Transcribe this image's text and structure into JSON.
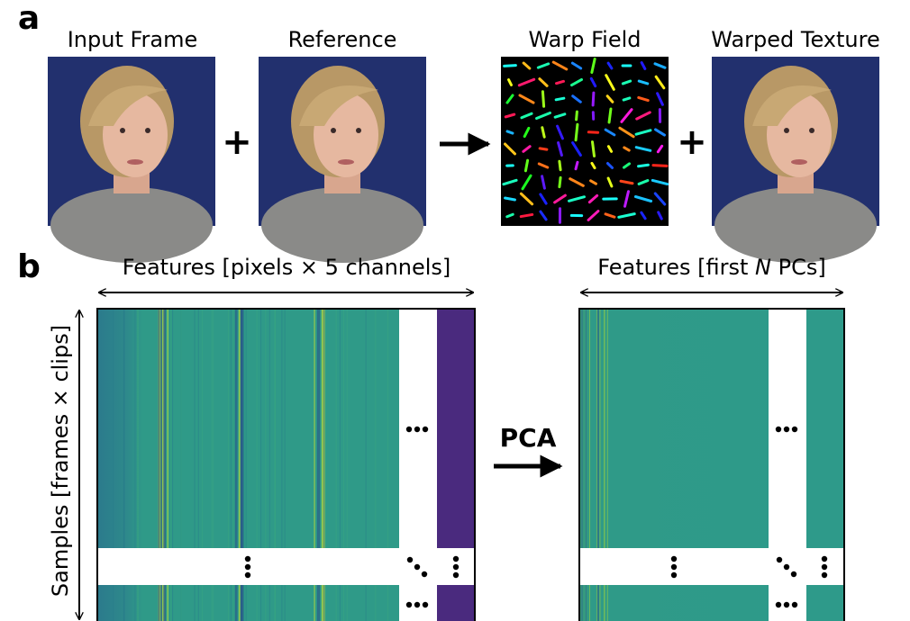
{
  "panel_a": {
    "label": "a",
    "images": [
      {
        "caption": "Input Frame"
      },
      {
        "caption": "Reference"
      },
      {
        "caption": "Warp Field"
      },
      {
        "caption": "Warped Texture"
      }
    ],
    "operators": [
      "+",
      "+"
    ]
  },
  "panel_b": {
    "label": "b",
    "left": {
      "x_axis": "Features [pixels × 5 channels]",
      "y_axis": "Samples [frames × clips]"
    },
    "operation": "PCA",
    "right": {
      "x_axis_parts": [
        "Features [first ",
        "N",
        " PCs]"
      ]
    }
  }
}
